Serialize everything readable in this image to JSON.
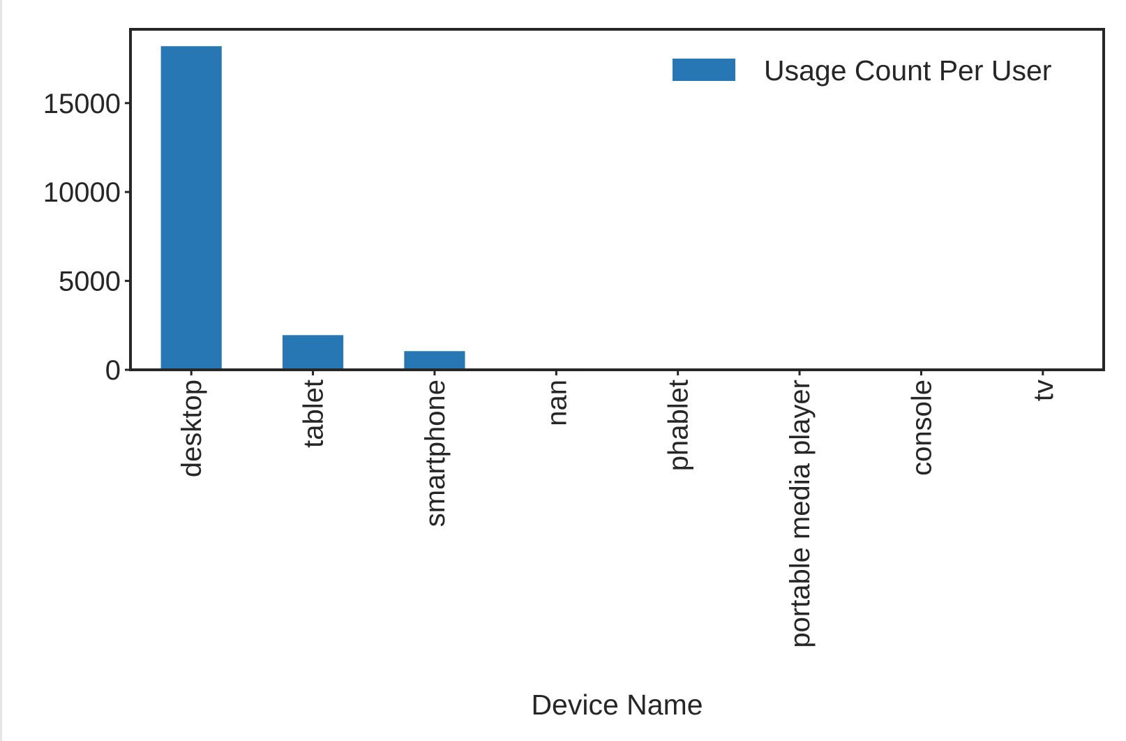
{
  "chart_data": {
    "type": "bar",
    "title": "",
    "xlabel": "Device Name",
    "ylabel": "",
    "categories": [
      "desktop",
      "tablet",
      "smartphone",
      "nan",
      "phablet",
      "portable media player",
      "console",
      "tv"
    ],
    "series": [
      {
        "name": "Usage Count Per User",
        "values": [
          18200,
          1950,
          1050,
          80,
          12,
          8,
          4,
          2
        ],
        "color": "#2677b4"
      }
    ],
    "yticks": [
      0,
      5000,
      10000,
      15000
    ],
    "ylim": [
      0,
      19150
    ],
    "grid": false,
    "legend_position": "top-right"
  }
}
